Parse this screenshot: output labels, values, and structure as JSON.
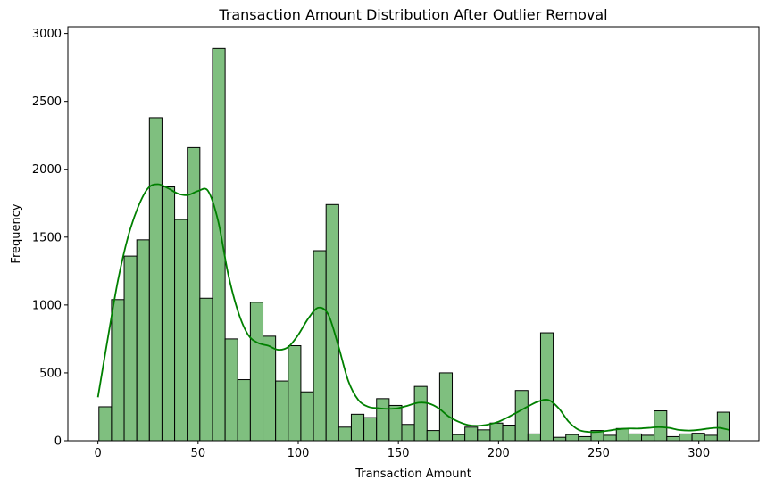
{
  "chart_data": {
    "type": "bar",
    "title": "Transaction Amount Distribution After Outlier Removal",
    "xlabel": "Transaction Amount",
    "ylabel": "Frequency",
    "xlim": [
      -15,
      330
    ],
    "ylim": [
      0,
      3050
    ],
    "xticks": [
      0,
      50,
      100,
      150,
      200,
      250,
      300
    ],
    "yticks": [
      0,
      500,
      1000,
      1500,
      2000,
      2500,
      3000
    ],
    "bin_start": 0.5,
    "bin_width": 6.3,
    "values": [
      250,
      1040,
      1360,
      1480,
      2380,
      1870,
      1630,
      2160,
      1050,
      2890,
      750,
      450,
      1020,
      770,
      440,
      700,
      360,
      1400,
      1740,
      100,
      195,
      170,
      310,
      260,
      120,
      400,
      75,
      500,
      45,
      100,
      80,
      130,
      115,
      370,
      50,
      795,
      25,
      45,
      30,
      75,
      40,
      90,
      50,
      40,
      220,
      30,
      50,
      55,
      40,
      210
    ],
    "kde": {
      "x": [
        0,
        5,
        10,
        15,
        20,
        25,
        30,
        35,
        40,
        45,
        50,
        55,
        60,
        65,
        70,
        75,
        80,
        85,
        90,
        95,
        100,
        105,
        110,
        115,
        120,
        125,
        130,
        135,
        140,
        145,
        150,
        155,
        160,
        165,
        170,
        175,
        180,
        185,
        190,
        195,
        200,
        205,
        210,
        215,
        220,
        225,
        230,
        235,
        240,
        245,
        250,
        255,
        260,
        265,
        270,
        275,
        280,
        285,
        290,
        295,
        300,
        305,
        310,
        315
      ],
      "y": [
        320,
        760,
        1180,
        1500,
        1720,
        1860,
        1890,
        1860,
        1820,
        1810,
        1840,
        1840,
        1620,
        1230,
        950,
        780,
        720,
        700,
        670,
        690,
        780,
        900,
        980,
        930,
        700,
        440,
        300,
        250,
        240,
        235,
        240,
        260,
        280,
        275,
        240,
        180,
        140,
        115,
        110,
        120,
        140,
        175,
        215,
        255,
        290,
        300,
        240,
        140,
        80,
        65,
        65,
        75,
        85,
        90,
        90,
        95,
        100,
        95,
        80,
        75,
        80,
        90,
        95,
        80
      ]
    },
    "colors": {
      "bar_fill": "#7fbf7f",
      "bar_edge": "#000000",
      "kde_line": "#008000"
    },
    "grid": false,
    "legend": "none"
  }
}
